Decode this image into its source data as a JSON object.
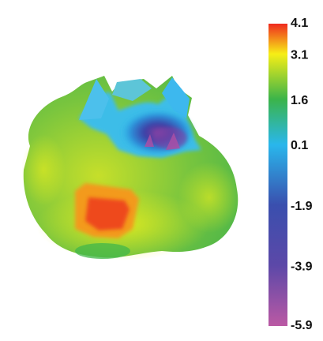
{
  "chart_data": {
    "type": "heatmap",
    "title": "",
    "xlabel": "",
    "ylabel": "",
    "colorbar": {
      "min": -5.9,
      "max": 4.1,
      "ticks": [
        "4.1",
        "3.1",
        "1.6",
        "0.1",
        "-1.9",
        "-3.9",
        "-5.9"
      ],
      "tick_values": [
        4.1,
        3.1,
        1.6,
        0.1,
        -1.9,
        -3.9,
        -5.9
      ],
      "colors": [
        {
          "value": 4.1,
          "color": "#ef2a1f"
        },
        {
          "value": 3.1,
          "color": "#f7ee16"
        },
        {
          "value": 1.6,
          "color": "#3bb44a"
        },
        {
          "value": 0.1,
          "color": "#29b7ec"
        },
        {
          "value": -1.9,
          "color": "#3a4fae"
        },
        {
          "value": -3.9,
          "color": "#5c48a8"
        },
        {
          "value": -5.9,
          "color": "#bb59a4"
        }
      ]
    },
    "surface": {
      "description_values": {
        "max_region_value": 3.8,
        "min_region_value": -4.5
      }
    }
  }
}
